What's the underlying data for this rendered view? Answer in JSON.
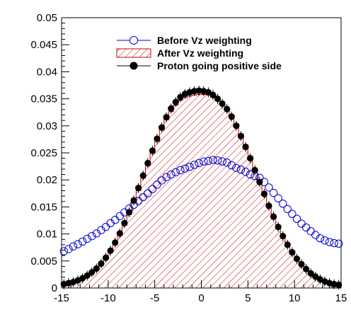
{
  "chart_data": {
    "type": "line",
    "title": "",
    "xlabel": "",
    "ylabel": "",
    "xlim": [
      -15,
      15
    ],
    "ylim": [
      0,
      0.05
    ],
    "grid": false,
    "legend_placement": "top-center",
    "x_ticks": [
      "-15",
      "-10",
      "-5",
      "0",
      "5",
      "10",
      "15"
    ],
    "y_ticks": [
      "0",
      "0.005",
      "0.01",
      "0.015",
      "0.02",
      "0.025",
      "0.03",
      "0.035",
      "0.04",
      "0.045",
      "0.05"
    ],
    "colors": {
      "before": "#0000cc",
      "after": "#cc0000",
      "proton": "#000000"
    },
    "bins": [
      -14.75,
      -14.25,
      -13.75,
      -13.25,
      -12.75,
      -12.25,
      -11.75,
      -11.25,
      -10.75,
      -10.25,
      -9.75,
      -9.25,
      -8.75,
      -8.25,
      -7.75,
      -7.25,
      -6.75,
      -6.25,
      -5.75,
      -5.25,
      -4.75,
      -4.25,
      -3.75,
      -3.25,
      -2.75,
      -2.25,
      -1.75,
      -1.25,
      -0.75,
      -0.25,
      0.25,
      0.75,
      1.25,
      1.75,
      2.25,
      2.75,
      3.25,
      3.75,
      4.25,
      4.75,
      5.25,
      5.75,
      6.25,
      6.75,
      7.25,
      7.75,
      8.25,
      8.75,
      9.25,
      9.75,
      10.25,
      10.75,
      11.25,
      11.75,
      12.25,
      12.75,
      13.25,
      13.75,
      14.25,
      14.75
    ],
    "series": [
      {
        "name": "Before Vz weighting",
        "values": [
          0.0068,
          0.0072,
          0.0077,
          0.0081,
          0.0086,
          0.0091,
          0.0096,
          0.0101,
          0.0107,
          0.0113,
          0.012,
          0.0126,
          0.0133,
          0.014,
          0.0147,
          0.0154,
          0.0161,
          0.0168,
          0.0175,
          0.0183,
          0.0191,
          0.0199,
          0.0205,
          0.021,
          0.0214,
          0.0218,
          0.0221,
          0.0224,
          0.0228,
          0.0231,
          0.0234,
          0.0235,
          0.0237,
          0.0236,
          0.0234,
          0.0232,
          0.0227,
          0.0222,
          0.0219,
          0.0215,
          0.021,
          0.0207,
          0.0204,
          0.0196,
          0.0186,
          0.0176,
          0.0166,
          0.0156,
          0.0146,
          0.0137,
          0.0128,
          0.0119,
          0.0112,
          0.0105,
          0.0098,
          0.0092,
          0.0088,
          0.0085,
          0.0083,
          0.0082
        ]
      },
      {
        "name": "After Vz weighting",
        "values": [
          0.0006,
          0.0008,
          0.001,
          0.0013,
          0.0017,
          0.0022,
          0.0028,
          0.0035,
          0.0044,
          0.0055,
          0.0067,
          0.0081,
          0.0098,
          0.0116,
          0.0136,
          0.0157,
          0.018,
          0.0203,
          0.0226,
          0.0249,
          0.0271,
          0.0292,
          0.0311,
          0.0326,
          0.0338,
          0.0347,
          0.0352,
          0.0355,
          0.0357,
          0.0358,
          0.0358,
          0.0357,
          0.0354,
          0.035,
          0.0343,
          0.0333,
          0.032,
          0.0304,
          0.0285,
          0.0265,
          0.0243,
          0.0221,
          0.0198,
          0.0175,
          0.0153,
          0.0132,
          0.0113,
          0.0095,
          0.0079,
          0.0065,
          0.0053,
          0.0042,
          0.0033,
          0.0026,
          0.002,
          0.0015,
          0.0011,
          0.0008,
          0.0006,
          0.0005
        ]
      },
      {
        "name": "Proton going positive side",
        "values": [
          0.0007,
          0.0009,
          0.0011,
          0.0014,
          0.0018,
          0.0023,
          0.0029,
          0.0036,
          0.0045,
          0.0056,
          0.0069,
          0.0084,
          0.0101,
          0.012,
          0.014,
          0.0162,
          0.0185,
          0.0208,
          0.0231,
          0.0254,
          0.0276,
          0.0297,
          0.0316,
          0.0332,
          0.0344,
          0.0353,
          0.0359,
          0.0362,
          0.0364,
          0.0365,
          0.0364,
          0.0362,
          0.0357,
          0.035,
          0.0341,
          0.0331,
          0.0317,
          0.03,
          0.0281,
          0.0261,
          0.024,
          0.0218,
          0.0196,
          0.0174,
          0.0152,
          0.0132,
          0.0113,
          0.0096,
          0.008,
          0.0066,
          0.0054,
          0.0044,
          0.0035,
          0.0027,
          0.0021,
          0.0016,
          0.0012,
          0.0009,
          0.0007,
          0.0006
        ]
      }
    ]
  },
  "legend": {
    "entries": [
      "Before Vz weighting",
      "After Vz weighting",
      "Proton going positive side"
    ]
  }
}
